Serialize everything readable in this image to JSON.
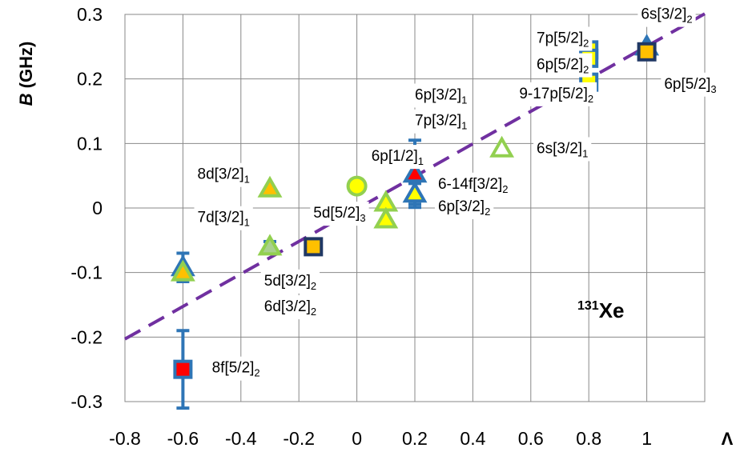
{
  "chart_data": {
    "type": "scatter",
    "xlim": [
      -0.8,
      1.2
    ],
    "ylim": [
      -0.3,
      0.3
    ],
    "xticks": [
      "-0.8",
      "-0.6",
      "-0.4",
      "-0.2",
      "0",
      "0.2",
      "0.4",
      "0.6",
      "0.8",
      "1"
    ],
    "yticks": [
      "-0.3",
      "-0.2",
      "-0.1",
      "0",
      "0.1",
      "0.2",
      "0.3"
    ],
    "xlabel": "Λ",
    "ylabel_italic": "B",
    "ylabel_rest": " (GHz)",
    "grid": true,
    "inset": {
      "mass": "131",
      "element": "Xe"
    },
    "fit_line": {
      "x": [
        -0.8,
        1.2
      ],
      "y": [
        -0.203,
        0.301
      ],
      "color": "#7030a0",
      "style": "dashed"
    },
    "points": [
      {
        "label": "8f[5/2]2",
        "x": -0.6,
        "y": -0.25,
        "err": 0.06,
        "marker": "square",
        "edge": "#2e75b6",
        "fill": "#ff0000"
      },
      {
        "label": "7d[3/2]1",
        "x": -0.6,
        "y": -0.092,
        "err": 0.022,
        "marker": "triangle",
        "edge": "#2e75b6",
        "fill": "#2e75b6"
      },
      {
        "label": "5d[3/2]2",
        "x": -0.6,
        "y": -0.1,
        "err": 0,
        "marker": "triangle",
        "edge": "#92d050",
        "fill": "#ffc000"
      },
      {
        "label": "8d[3/2]1",
        "x": -0.3,
        "y": 0.03,
        "err": 0,
        "marker": "triangle",
        "edge": "#92d050",
        "fill": "#ffc000"
      },
      {
        "label": "5d[5/2]3",
        "x": -0.3,
        "y": -0.06,
        "err": 0.008,
        "marker": "triangle",
        "edge": "#92d050",
        "fill": "#a9d18e"
      },
      {
        "label": "6d[3/2]2",
        "x": -0.15,
        "y": -0.06,
        "err": 0,
        "marker": "square",
        "edge": "#203864",
        "fill": "#ffc000"
      },
      {
        "label": "6p[1/2]1",
        "x": 0.0,
        "y": 0.034,
        "err": 0,
        "marker": "circle",
        "edge": "#92d050",
        "fill": "#ffff00"
      },
      {
        "label": "6p[3/2]1",
        "x": 0.1,
        "y": 0.008,
        "err": 0,
        "marker": "triangle",
        "edge": "#92d050",
        "fill": "#ffff00"
      },
      {
        "label": "6p[3/2]2",
        "x": 0.1,
        "y": -0.018,
        "err": 0,
        "marker": "triangle",
        "edge": "#92d050",
        "fill": "#ffff00"
      },
      {
        "label": "7p[3/2]1",
        "x": 0.2,
        "y": 0.053,
        "err": 0.052,
        "marker": "triangle",
        "edge": "#2e75b6",
        "fill": "#ff0000"
      },
      {
        "label": "6-14f[3/2]2",
        "x": 0.2,
        "y": 0.022,
        "err": 0.016,
        "marker": "triangle",
        "edge": "#2e75b6",
        "fill": "#ffff00"
      },
      {
        "label": "6s[3/2]1",
        "x": 0.5,
        "y": 0.092,
        "err": 0,
        "marker": "triangle",
        "edge": "#92d050",
        "fill": "#ffffff"
      },
      {
        "label": "7p[5/2]2",
        "x": 0.8,
        "y": 0.245,
        "err": 0,
        "marker": "square",
        "edge": "#2e75b6",
        "fill": "#ffff00"
      },
      {
        "label": "6p[5/2]2",
        "x": 0.8,
        "y": 0.232,
        "err": 0,
        "marker": "square",
        "edge": "#2e75b6",
        "fill": "#ffff00"
      },
      {
        "label": "9-17p[5/2]2",
        "x": 0.8,
        "y": 0.195,
        "err": 0.032,
        "marker": "square",
        "edge": "#2e75b6",
        "fill": "#ffff00"
      },
      {
        "label": "6s[3/2]2",
        "x": 1.0,
        "y": 0.25,
        "err": 0,
        "marker": "triangle",
        "edge": "#2e75b6",
        "fill": "#2e75b6"
      },
      {
        "label": "6p[5/2]3",
        "x": 1.0,
        "y": 0.242,
        "err": 0,
        "marker": "square",
        "edge": "#203864",
        "fill": "#ffc000"
      }
    ],
    "annotations": [
      {
        "base": "6s[3/2]",
        "sub": "2",
        "x": 0.98,
        "y": 0.293
      },
      {
        "base": "7p[5/2]",
        "sub": "2",
        "x": 0.62,
        "y": 0.256
      },
      {
        "base": "6p[5/2]",
        "sub": "2",
        "x": 0.62,
        "y": 0.215
      },
      {
        "base": "9-17p[5/2]",
        "sub": "2",
        "x": 0.56,
        "y": 0.17
      },
      {
        "base": "6p[5/2]",
        "sub": "3",
        "x": 1.06,
        "y": 0.185
      },
      {
        "base": "6p[3/2]",
        "sub": "1",
        "x": 0.2,
        "y": 0.168
      },
      {
        "base": "7p[3/2]",
        "sub": "1",
        "x": 0.2,
        "y": 0.128
      },
      {
        "base": "6p[1/2]",
        "sub": "1",
        "x": 0.05,
        "y": 0.073
      },
      {
        "base": "6s[3/2]",
        "sub": "1",
        "x": 0.62,
        "y": 0.085
      },
      {
        "base": "8d[3/2]",
        "sub": "1",
        "x": -0.55,
        "y": 0.045
      },
      {
        "base": "6-14f[3/2]",
        "sub": "2",
        "x": 0.28,
        "y": 0.03
      },
      {
        "base": "6p[3/2]",
        "sub": "2",
        "x": 0.28,
        "y": -0.005
      },
      {
        "base": "5d[5/2]",
        "sub": "3",
        "x": -0.15,
        "y": -0.015
      },
      {
        "base": "7d[3/2]",
        "sub": "1",
        "x": -0.55,
        "y": -0.022
      },
      {
        "base": "5d[3/2]",
        "sub": "2",
        "x": -0.32,
        "y": -0.12
      },
      {
        "base": "6d[3/2]",
        "sub": "2",
        "x": -0.32,
        "y": -0.16
      },
      {
        "base": "8f[5/2]",
        "sub": "2",
        "x": -0.5,
        "y": -0.255
      }
    ]
  }
}
